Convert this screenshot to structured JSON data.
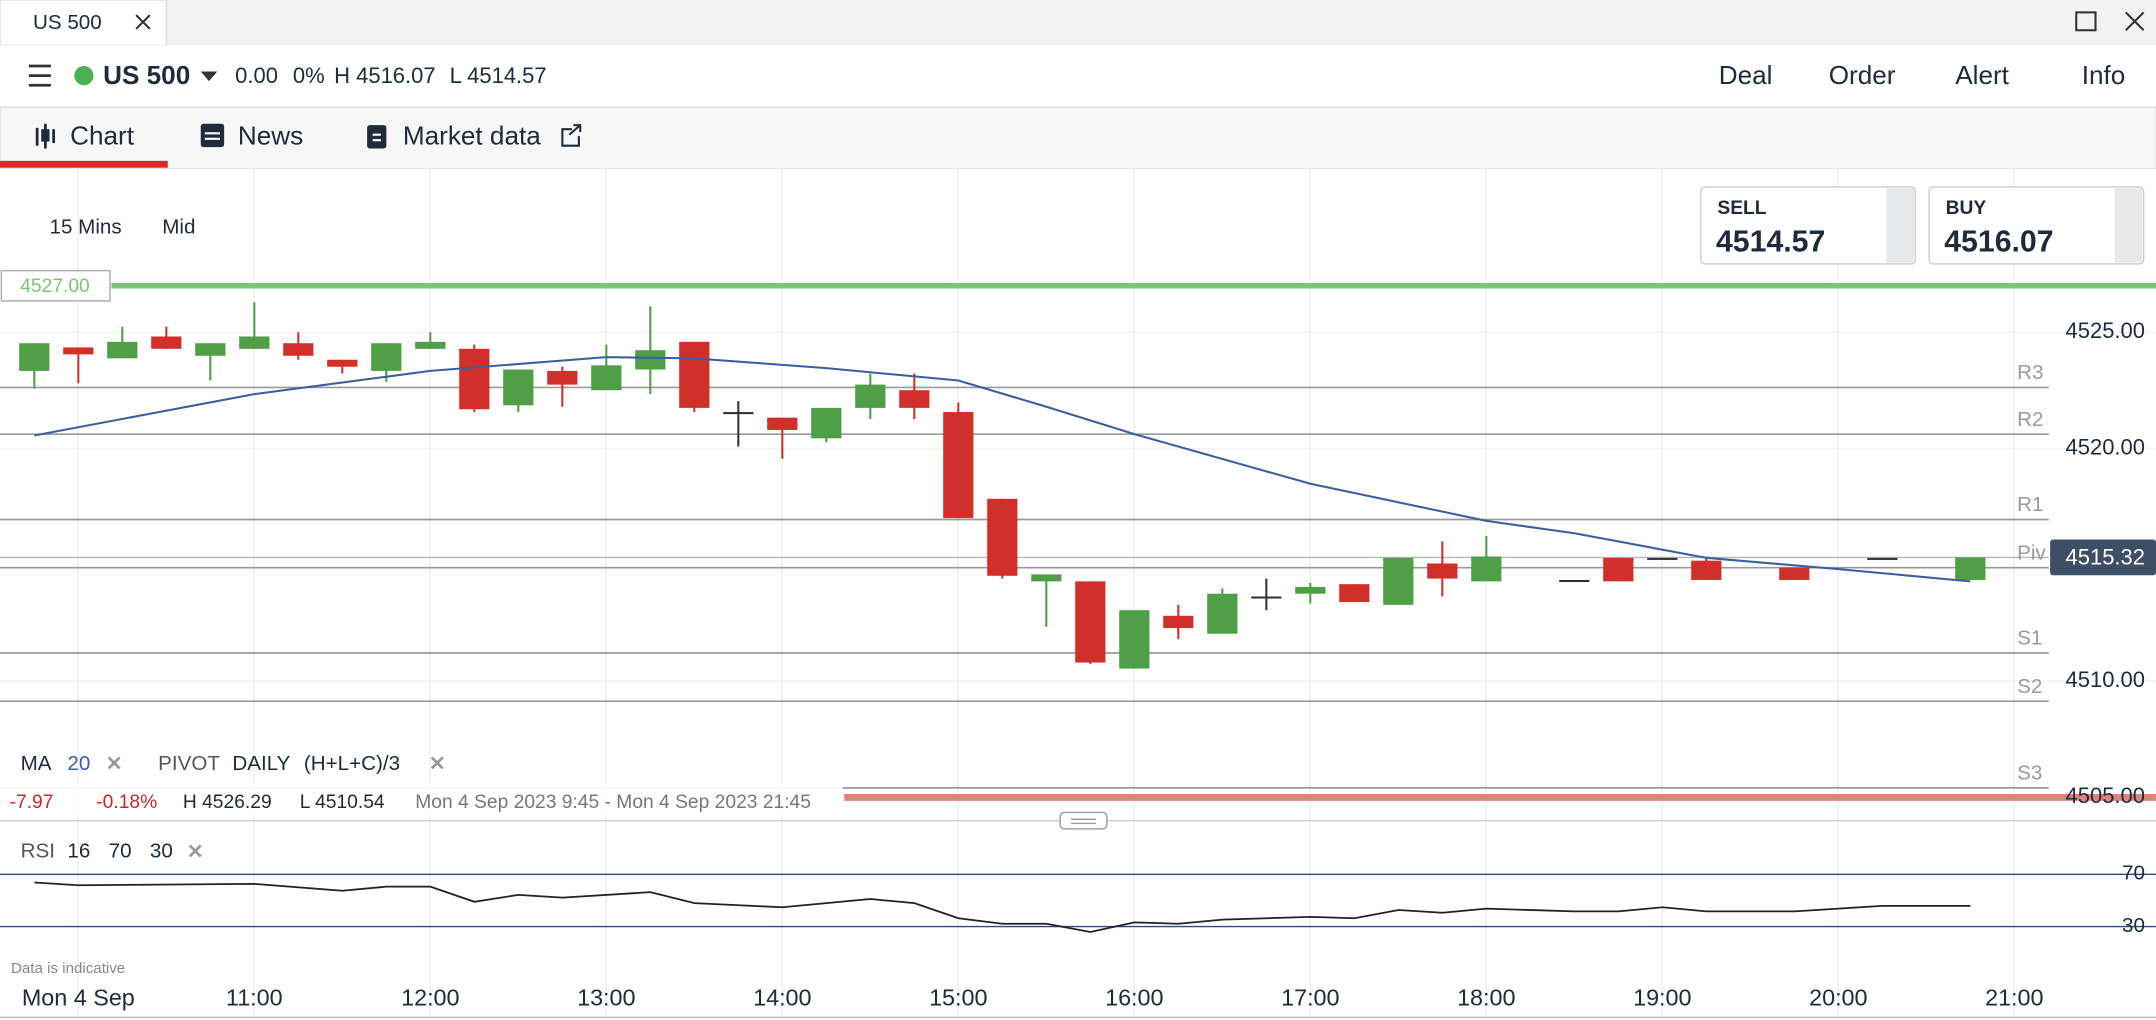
{
  "ui": {
    "tab_title": "US 500",
    "instrument": "US 500",
    "change": "0.00",
    "change_pct": "0%",
    "high": "H 4516.07",
    "low": "L 4514.57",
    "menu": [
      "Deal",
      "Order",
      "Alert",
      "Info"
    ],
    "tabs": [
      "Chart",
      "News",
      "Market data"
    ],
    "timeframe": "15 Mins",
    "price_type": "Mid",
    "sell_label": "SELL",
    "sell_price": "4514.57",
    "buy_label": "BUY",
    "buy_price": "4516.07",
    "legend": {
      "ma": "MA",
      "ma_period": "20",
      "pivot": "PIVOT",
      "pivot_period": "DAILY",
      "pivot_formula": "(H+L+C)/3"
    },
    "stats": {
      "change": "-7.97",
      "change_pct": "-0.18%",
      "high": "H 4526.29",
      "low": "L 4510.54",
      "range": "Mon 4 Sep 2023 9:45 - Mon 4 Sep 2023 21:45"
    },
    "rsi_legend": {
      "name": "RSI",
      "period": "16",
      "upper": "70",
      "lower": "30"
    },
    "footnote": "Data is indicative"
  },
  "chart_data": {
    "type": "candlestick",
    "x": [
      9.75,
      10,
      10.25,
      10.5,
      10.75,
      11,
      11.25,
      11.5,
      11.75,
      12,
      12.25,
      12.5,
      12.75,
      13,
      13.25,
      13.5,
      13.75,
      14,
      14.25,
      14.5,
      14.75,
      15,
      15.25,
      15.5,
      15.75,
      16,
      16.25,
      16.5,
      16.75,
      17,
      17.25,
      17.5,
      17.75,
      18,
      18.25,
      18.5,
      18.75,
      19,
      19.25,
      19.5,
      19.75,
      20,
      20.25,
      20.5,
      20.75
    ],
    "open": [
      4523.34,
      4524.35,
      4523.88,
      4524.82,
      4523.99,
      4524.29,
      4524.53,
      4523.82,
      4523.34,
      4524.29,
      4524.29,
      4521.86,
      4523.34,
      4522.51,
      4523.4,
      4524.59,
      4521.57,
      4521.33,
      4520.44,
      4521.75,
      4522.51,
      4521.57,
      4517.84,
      4514.29,
      4514.29,
      4510.54,
      4512.81,
      4512.04,
      4513.64,
      4513.76,
      4514.17,
      4513.28,
      4515.06,
      4514.29,
      null,
      4514.35,
      4515.3,
      4515.3,
      4515.18,
      null,
      4514.88,
      null,
      4515.3,
      null,
      4514.35
    ],
    "high": [
      4524.53,
      4524.35,
      4525.24,
      4525.24,
      4524.53,
      4526.29,
      4525.0,
      4523.82,
      4524.53,
      4525.0,
      4524.47,
      4523.4,
      4523.52,
      4524.47,
      4526.12,
      4524.59,
      4522.04,
      4521.33,
      4521.75,
      4523.22,
      4523.22,
      4521.98,
      4517.84,
      4514.59,
      4514.29,
      4513.05,
      4513.28,
      4513.99,
      4514.41,
      4514.23,
      4514.17,
      4515.3,
      4516.01,
      4516.24,
      null,
      4514.35,
      4515.3,
      4515.3,
      4515.36,
      null,
      4514.88,
      null,
      4515.3,
      null,
      4515.32
    ],
    "low": [
      4522.57,
      4522.81,
      4523.88,
      4524.29,
      4522.93,
      4524.29,
      4523.82,
      4523.22,
      4522.87,
      4524.29,
      4521.57,
      4521.57,
      4521.8,
      4522.51,
      4522.34,
      4521.57,
      4520.09,
      4519.56,
      4520.27,
      4521.27,
      4521.27,
      4517.01,
      4514.41,
      4512.34,
      4510.74,
      4510.54,
      4511.8,
      4512.04,
      4513.05,
      4513.34,
      4513.4,
      4513.28,
      4513.64,
      4514.29,
      null,
      4514.35,
      4514.29,
      4515.3,
      4514.35,
      null,
      4514.35,
      null,
      4515.3,
      null,
      4514.35
    ],
    "close": [
      4524.53,
      4524.05,
      4524.59,
      4524.29,
      4524.53,
      4524.82,
      4523.99,
      4523.52,
      4524.53,
      4524.59,
      4521.69,
      4523.4,
      4522.75,
      4523.58,
      4524.23,
      4521.75,
      4521.57,
      4520.8,
      4521.75,
      4522.75,
      4521.75,
      4517.01,
      4514.53,
      4514.59,
      4510.8,
      4513.05,
      4512.28,
      4513.76,
      4513.64,
      4514.05,
      4513.4,
      4515.3,
      4514.41,
      4515.36,
      null,
      4514.35,
      4514.29,
      4515.3,
      4514.35,
      null,
      4514.35,
      null,
      4515.3,
      null,
      4515.32
    ],
    "up_color": "#4e9f45",
    "down_color": "#d1302a",
    "ma": {
      "x": [
        9.75,
        11,
        12,
        13,
        13.5,
        14.25,
        15,
        15.5,
        16,
        17,
        18,
        18.5,
        19.25,
        20,
        20.75
      ],
      "values": [
        4520.56,
        4522.34,
        4523.34,
        4523.93,
        4523.88,
        4523.46,
        4522.93,
        4521.8,
        4520.62,
        4518.49,
        4516.89,
        4516.36,
        4515.3,
        4514.82,
        4514.29
      ],
      "color": "#3b5f9e"
    },
    "pivots": [
      {
        "label": "R3",
        "value": 4522.63
      },
      {
        "label": "R2",
        "value": 4520.62
      },
      {
        "label": "R1",
        "value": 4516.95
      },
      {
        "label": "Piv",
        "value": 4514.88
      },
      {
        "label": "S1",
        "value": 4511.21
      },
      {
        "label": "S2",
        "value": 4509.14
      },
      {
        "label": "S3",
        "value": 4505.41
      }
    ],
    "alert_line": {
      "value": 4527,
      "label": "4527.00",
      "color": "#7cc576"
    },
    "low_line": {
      "value": 4505,
      "color": "#e06b64"
    },
    "current_price": 4515.32,
    "xlim": [
      9.555,
      21.805
    ],
    "ylim": [
      4504.0,
      4531.9
    ],
    "xticks": [
      {
        "value": 10,
        "label": "Mon 4 Sep"
      },
      {
        "value": 11,
        "label": "11:00"
      },
      {
        "value": 12,
        "label": "12:00"
      },
      {
        "value": 13,
        "label": "13:00"
      },
      {
        "value": 14,
        "label": "14:00"
      },
      {
        "value": 15,
        "label": "15:00"
      },
      {
        "value": 16,
        "label": "16:00"
      },
      {
        "value": 17,
        "label": "17:00"
      },
      {
        "value": 18,
        "label": "18:00"
      },
      {
        "value": 19,
        "label": "19:00"
      },
      {
        "value": 20,
        "label": "20:00"
      },
      {
        "value": 21,
        "label": "21:00"
      }
    ],
    "yticks": [
      {
        "value": 4525,
        "label": "4525.00"
      },
      {
        "value": 4520,
        "label": "4520.00"
      },
      {
        "value": 4510,
        "label": "4510.00"
      },
      {
        "value": 4505,
        "label": "4505.00"
      }
    ],
    "rsi": {
      "x": [
        9.75,
        10,
        11,
        11.5,
        11.75,
        12,
        12.25,
        12.5,
        12.75,
        13.25,
        13.5,
        14,
        14.5,
        14.75,
        15,
        15.25,
        15.5,
        15.75,
        16,
        16.25,
        16.5,
        17,
        17.25,
        17.5,
        17.75,
        18,
        18.5,
        18.75,
        19,
        19.25,
        19.75,
        20,
        20.25,
        20.75
      ],
      "values": [
        63.7,
        61.6,
        62.6,
        57.4,
        60.5,
        60.5,
        48.9,
        54.2,
        52.1,
        56.3,
        47.9,
        44.7,
        51.1,
        47.9,
        36.3,
        32.1,
        32.1,
        25.8,
        33.2,
        32.1,
        35.3,
        37.4,
        36.3,
        42.6,
        40.5,
        43.7,
        41.6,
        41.6,
        44.7,
        41.6,
        41.6,
        43.7,
        45.8,
        45.8
      ],
      "color": "#222222",
      "ylim": [
        0,
        100
      ],
      "yticks": [
        70,
        30
      ],
      "level_color": "#2a4a86"
    }
  }
}
